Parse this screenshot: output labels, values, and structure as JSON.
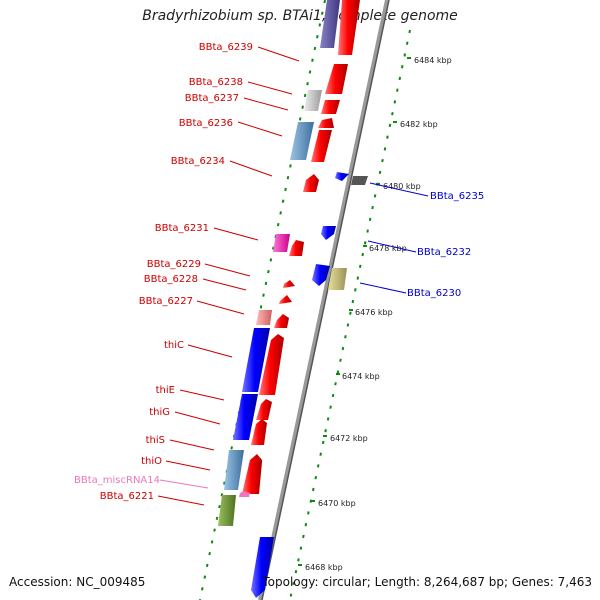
{
  "title": "Bradyrhizobium sp. BTAi1, complete genome",
  "footer": {
    "accession": "Accession: NC_009485",
    "summary": "Topology: circular; Length: 8,264,687 bp; Genes: 7,463"
  },
  "colors": {
    "forward_strand": "#ff0000",
    "reverse_strand": "#0000ff",
    "axis": "#888888",
    "ruler_dots": "#118811",
    "label_forward": "#cc0000",
    "label_reverse": "#0000cc",
    "label_misc": "#ee77bb"
  },
  "ticks": [
    {
      "label": "6484 kbp"
    },
    {
      "label": "6482 kbp"
    },
    {
      "label": "6480 kbp"
    },
    {
      "label": "6478 kbp"
    },
    {
      "label": "6476 kbp"
    },
    {
      "label": "6474 kbp"
    },
    {
      "label": "6472 kbp"
    },
    {
      "label": "6470 kbp"
    },
    {
      "label": "6468 kbp"
    }
  ],
  "left_labels": [
    {
      "name": "BBta_6239"
    },
    {
      "name": "BBta_6238"
    },
    {
      "name": "BBta_6237"
    },
    {
      "name": "BBta_6236"
    },
    {
      "name": "BBta_6234"
    },
    {
      "name": "BBta_6231"
    },
    {
      "name": "BBta_6229"
    },
    {
      "name": "BBta_6228"
    },
    {
      "name": "BBta_6227"
    },
    {
      "name": "thiC"
    },
    {
      "name": "thiE"
    },
    {
      "name": "thiG"
    },
    {
      "name": "thiS"
    },
    {
      "name": "thiO"
    },
    {
      "name": "BBta_miscRNA14"
    },
    {
      "name": "BBta_6221"
    }
  ],
  "right_labels": [
    {
      "name": "BBta_6235"
    },
    {
      "name": "BBta_6232"
    },
    {
      "name": "BBta_6230"
    }
  ]
}
